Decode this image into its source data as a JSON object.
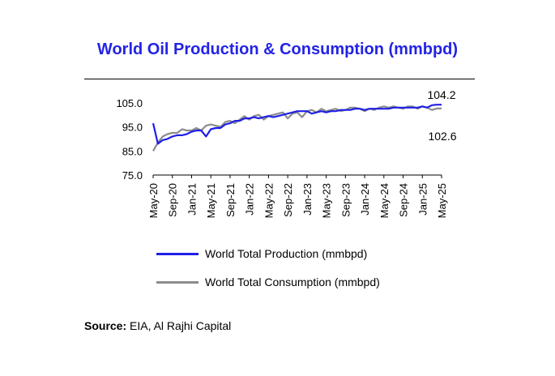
{
  "title": "World Oil Production & Consumption (mmbpd)",
  "title_color": "#2323e6",
  "source": {
    "label": "Source:",
    "text": " EIA, Al Rajhi Capital"
  },
  "chart_data": {
    "type": "line",
    "title": "World Oil Production & Consumption (mmbpd)",
    "ylim": [
      75,
      112
    ],
    "yticks": [
      "105.0",
      "95.0",
      "85.0",
      "75.0"
    ],
    "yticks_values": [
      105,
      95,
      85,
      75
    ],
    "xtick_labels": [
      "May-20",
      "Sep-20",
      "Jan-21",
      "May-21",
      "Sep-21",
      "Jan-22",
      "May-22",
      "Sep-22",
      "Jan-23",
      "May-23",
      "Sep-23",
      "Jan-24",
      "May-24",
      "Sep-24",
      "Jan-25",
      "May-25"
    ],
    "xtick_index": [
      0,
      4,
      8,
      12,
      16,
      20,
      24,
      28,
      32,
      36,
      40,
      44,
      48,
      52,
      56,
      60
    ],
    "grid": false,
    "legend_position": "bottom",
    "annotations": [
      {
        "text": "104.2",
        "series": "World Total Production (mmbpd)"
      },
      {
        "text": "102.6",
        "series": "World Total Consumption (mmbpd)"
      }
    ],
    "series": [
      {
        "name": "World Total Production (mmbpd)",
        "color": "#1f1fe6",
        "values": [
          96.5,
          88.0,
          89.5,
          90.0,
          91.0,
          91.5,
          91.5,
          92.0,
          93.0,
          93.5,
          93.5,
          91.0,
          94.0,
          94.5,
          94.5,
          96.0,
          96.5,
          97.5,
          97.5,
          98.5,
          98.5,
          99.0,
          98.5,
          99.0,
          99.5,
          99.0,
          99.5,
          100.0,
          100.5,
          101.0,
          101.5,
          101.5,
          101.5,
          100.5,
          101.0,
          101.5,
          101.0,
          101.5,
          101.5,
          102.0,
          102.0,
          102.0,
          102.5,
          102.5,
          102.0,
          102.5,
          102.5,
          102.5,
          102.5,
          102.5,
          103.0,
          103.0,
          103.0,
          103.0,
          103.0,
          103.0,
          103.5,
          103.0,
          104.0,
          104.2,
          104.2
        ]
      },
      {
        "name": "World Total Consumption (mmbpd)",
        "color": "#8c8c8c",
        "values": [
          85.0,
          88.5,
          91.0,
          92.0,
          92.5,
          92.5,
          94.0,
          93.5,
          93.5,
          94.5,
          93.5,
          95.5,
          96.0,
          95.5,
          95.0,
          97.0,
          97.5,
          96.5,
          98.0,
          99.5,
          98.0,
          99.5,
          100.0,
          98.0,
          99.5,
          100.0,
          100.5,
          101.0,
          98.5,
          100.5,
          101.0,
          99.0,
          101.5,
          102.0,
          101.0,
          102.5,
          101.5,
          102.0,
          102.5,
          101.5,
          102.0,
          103.0,
          103.0,
          102.5,
          101.5,
          102.5,
          102.0,
          103.0,
          103.5,
          103.0,
          103.5,
          103.0,
          102.5,
          103.5,
          103.5,
          102.5,
          103.5,
          103.0,
          102.0,
          102.6,
          102.6
        ]
      }
    ]
  }
}
